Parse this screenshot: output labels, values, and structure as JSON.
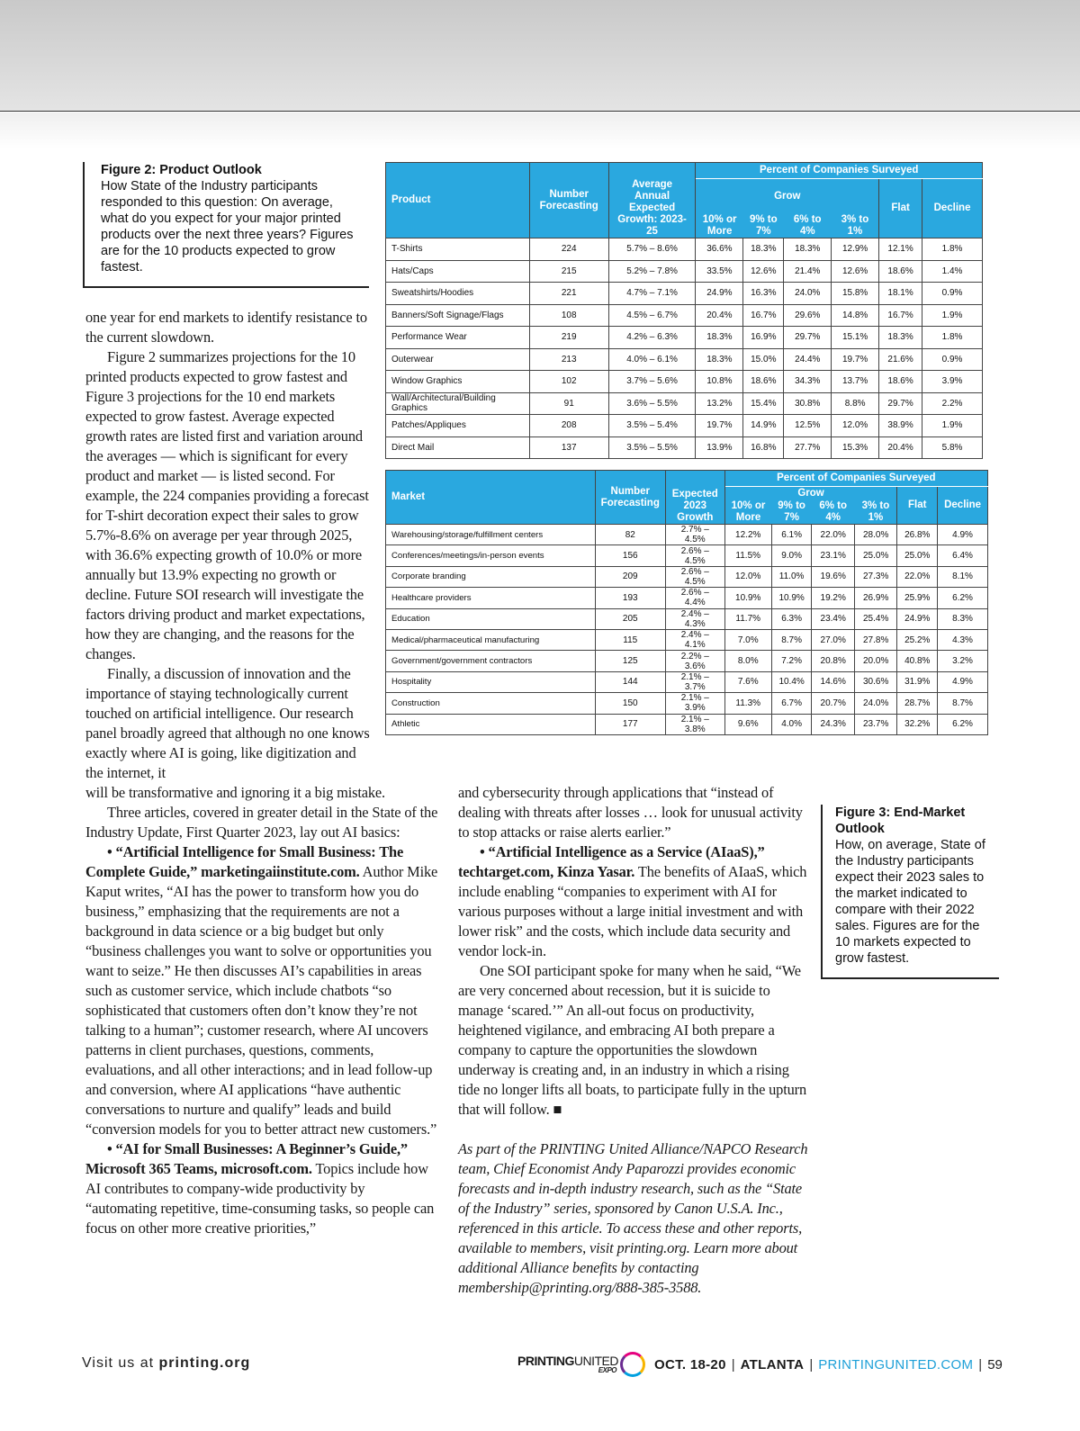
{
  "figure2": {
    "title": "Figure 2: Product Outlook",
    "caption": "How State of the Industry participants responded to this question: On average, what do you expect for your major printed products over the next three years? Figures are for the 10 products expected to grow fastest."
  },
  "figure3": {
    "title": "Figure 3: End-Market Outlook",
    "caption": "How, on average, State of the Industry participants expect their 2023 sales to the market indicated to compare with their 2022 sales. Figures are for the 10 markets expected to grow fastest."
  },
  "table1": {
    "super_header": "Percent of Companies Surveyed",
    "grow_header": "Grow",
    "headers": [
      "Product",
      "Number Forecasting",
      "Average Annual Expected Growth: 2023-25",
      "10% or More",
      "9% to 7%",
      "6% to 4%",
      "3% to 1%",
      "Flat",
      "Decline"
    ],
    "rows": [
      [
        "T-Shirts",
        "224",
        "5.7% – 8.6%",
        "36.6%",
        "18.3%",
        "18.3%",
        "12.9%",
        "12.1%",
        "1.8%"
      ],
      [
        "Hats/Caps",
        "215",
        "5.2% – 7.8%",
        "33.5%",
        "12.6%",
        "21.4%",
        "12.6%",
        "18.6%",
        "1.4%"
      ],
      [
        "Sweatshirts/Hoodies",
        "221",
        "4.7% – 7.1%",
        "24.9%",
        "16.3%",
        "24.0%",
        "15.8%",
        "18.1%",
        "0.9%"
      ],
      [
        "Banners/Soft Signage/Flags",
        "108",
        "4.5% – 6.7%",
        "20.4%",
        "16.7%",
        "29.6%",
        "14.8%",
        "16.7%",
        "1.9%"
      ],
      [
        "Performance Wear",
        "219",
        "4.2% – 6.3%",
        "18.3%",
        "16.9%",
        "29.7%",
        "15.1%",
        "18.3%",
        "1.8%"
      ],
      [
        "Outerwear",
        "213",
        "4.0% – 6.1%",
        "18.3%",
        "15.0%",
        "24.4%",
        "19.7%",
        "21.6%",
        "0.9%"
      ],
      [
        "Window Graphics",
        "102",
        "3.7% – 5.6%",
        "10.8%",
        "18.6%",
        "34.3%",
        "13.7%",
        "18.6%",
        "3.9%"
      ],
      [
        "Wall/Architectural/Building Graphics",
        "91",
        "3.6% – 5.5%",
        "13.2%",
        "15.4%",
        "30.8%",
        "8.8%",
        "29.7%",
        "2.2%"
      ],
      [
        "Patches/Appliques",
        "208",
        "3.5% – 5.4%",
        "19.7%",
        "14.9%",
        "12.5%",
        "12.0%",
        "38.9%",
        "1.9%"
      ],
      [
        "Direct Mail",
        "137",
        "3.5% – 5.5%",
        "13.9%",
        "16.8%",
        "27.7%",
        "15.3%",
        "20.4%",
        "5.8%"
      ]
    ]
  },
  "table2": {
    "super_header": "Percent of Companies Surveyed",
    "grow_header": "Grow",
    "headers": [
      "Market",
      "Number Forecasting",
      "Expected 2023 Growth",
      "10% or More",
      "9% to 7%",
      "6% to 4%",
      "3% to 1%",
      "Flat",
      "Decline"
    ],
    "rows": [
      [
        "Warehousing/storage/fulfillment centers",
        "82",
        "2.7% – 4.5%",
        "12.2%",
        "6.1%",
        "22.0%",
        "28.0%",
        "26.8%",
        "4.9%"
      ],
      [
        "Conferences/meetings/in-person events",
        "156",
        "2.6% – 4.5%",
        "11.5%",
        "9.0%",
        "23.1%",
        "25.0%",
        "25.0%",
        "6.4%"
      ],
      [
        "Corporate branding",
        "209",
        "2.6% – 4.5%",
        "12.0%",
        "11.0%",
        "19.6%",
        "27.3%",
        "22.0%",
        "8.1%"
      ],
      [
        "Healthcare providers",
        "193",
        "2.6% – 4.4%",
        "10.9%",
        "10.9%",
        "19.2%",
        "26.9%",
        "25.9%",
        "6.2%"
      ],
      [
        "Education",
        "205",
        "2.4% – 4.3%",
        "11.7%",
        "6.3%",
        "23.4%",
        "25.4%",
        "24.9%",
        "8.3%"
      ],
      [
        "Medical/pharmaceutical manufacturing",
        "115",
        "2.4% – 4.1%",
        "7.0%",
        "8.7%",
        "27.0%",
        "27.8%",
        "25.2%",
        "4.3%"
      ],
      [
        "Government/government contractors",
        "125",
        "2.2% – 3.6%",
        "8.0%",
        "7.2%",
        "20.8%",
        "20.0%",
        "40.8%",
        "3.2%"
      ],
      [
        "Hospitality",
        "144",
        "2.1% – 3.7%",
        "7.6%",
        "10.4%",
        "14.6%",
        "30.6%",
        "31.9%",
        "4.9%"
      ],
      [
        "Construction",
        "150",
        "2.1% – 3.9%",
        "11.3%",
        "6.7%",
        "20.7%",
        "24.0%",
        "28.7%",
        "8.7%"
      ],
      [
        "Athletic",
        "177",
        "2.1% – 3.8%",
        "9.6%",
        "4.0%",
        "24.3%",
        "23.7%",
        "32.2%",
        "6.2%"
      ]
    ]
  },
  "left_a": [
    {
      "cls": "noind",
      "segs": [
        {
          "t": "one year for end markets to identify resistance to the current slowdown."
        }
      ]
    },
    {
      "cls": "",
      "segs": [
        {
          "t": "Figure 2 summarizes projections for the 10 printed products expected to grow fastest and Figure 3 projections for the 10 end markets expected to grow fastest. Average expected growth rates are listed first and variation around the averages — which is significant for every product and market — is listed second. For example, the 224 companies providing a forecast for T-shirt decoration expect their sales to grow 5.7%-8.6% on average per year through 2025, with 36.6% expecting growth of 10.0% or more annually but 13.9% expecting no growth or decline. Future SOI research will investigate the factors driving product and market expectations, how they are changing, and the reasons for the changes."
        }
      ]
    },
    {
      "cls": "",
      "segs": [
        {
          "t": "Finally, a discussion of innovation and the importance of staying technologically current touched on artificial intelligence. Our research panel broadly agreed that although no one knows exactly where AI is going, like digitization and the internet, it"
        }
      ]
    }
  ],
  "left_b": [
    {
      "cls": "noind",
      "segs": [
        {
          "t": "will be transformative and ignoring it a big mistake."
        }
      ]
    },
    {
      "cls": "",
      "segs": [
        {
          "t": "Three articles, covered in greater detail in the State of the Industry Update, First Quarter 2023, lay out AI basics:"
        }
      ]
    },
    {
      "cls": "bullet",
      "segs": [
        {
          "b": true,
          "t": "• “Artificial Intelligence for Small Business: The Complete Guide,” marketingaiinstitute.com."
        },
        {
          "t": " Author Mike Kaput writes, “AI has the power to transform how you do business,” emphasizing that the requirements are not a background in data science or a big budget but only “business challenges you want to solve or opportunities you want to seize.” He then discusses AI’s capabilities in areas such as customer service, which include chatbots “so sophisticated that customers often don’t know they’re not talking to a human”; customer research, where AI uncovers patterns in client purchases, questions, comments, evaluations, and all other interactions; and in lead follow-up and conversion, where AI applications “have authentic conversations to nurture and qualify” leads and build “conversion models for you to better attract new customers.”"
        }
      ]
    },
    {
      "cls": "bullet",
      "segs": [
        {
          "b": true,
          "t": "• “AI for Small Businesses: A Beginner’s Guide,” Microsoft 365 Teams, microsoft.com."
        },
        {
          "t": " Topics include how AI contributes to company-wide productivity by “automating repetitive, time-consuming tasks, so people can focus on other more creative priorities,”"
        }
      ]
    }
  ],
  "middle": [
    {
      "cls": "noind",
      "segs": [
        {
          "t": "and cybersecurity through applications that “instead of dealing with threats after losses … look for unusual activity to stop attacks or raise alerts earlier.”"
        }
      ]
    },
    {
      "cls": "bullet",
      "segs": [
        {
          "b": true,
          "t": "• “Artificial Intelligence as a Service (AIaaS),” techtarget.com, Kinza Yasar."
        },
        {
          "t": " The benefits of AIaaS, which include enabling “companies to experiment with AI for various purposes without a large initial investment and with lower risk” and the costs, which include data security and vendor lock-in."
        }
      ]
    },
    {
      "cls": "",
      "segs": [
        {
          "t": "One SOI participant spoke for many when he said, “We are very concerned about recession, but it is suicide to manage ‘scared.’” An all-out focus on productivity, heightened vigilance, and embracing AI both prepare a company to capture the opportunities the slowdown underway is creating and, in an industry in which a rising tide no longer lifts all boats, to participate fully in the upturn that will follow. ■"
        }
      ]
    }
  ],
  "bio": "As part of the PRINTING United Alliance/NAPCO Research team, Chief Economist Andy Paparozzi provides economic forecasts and in-depth industry research, such as the “State of the Industry” series, sponsored by Canon U.S.A. Inc., referenced in this article. To access these and other reports, available to members, visit printing.org. Learn more about additional Alliance benefits by contacting membership@printing.org/888-385-3588.",
  "footer": {
    "visit_prefix": "Visit us at ",
    "visit_site": "printing.org",
    "logo_bold": "PRINTING",
    "logo_light": "UNITED",
    "logo_expo": "EXPO",
    "dates": "OCT. 18-20",
    "city": "ATLANTA",
    "url": "PRINTINGUNITED.COM",
    "page": "59",
    "url_color": "#1ea0d8"
  },
  "colors": {
    "table_header": "#2aa8df"
  }
}
